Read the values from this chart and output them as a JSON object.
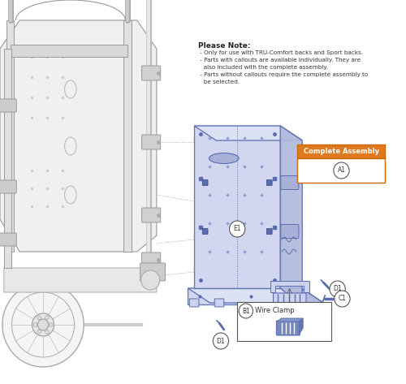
{
  "background_color": "#ffffff",
  "note_title": "Please Note:",
  "note_lines": [
    " - Only for use with TRU-Comfort backs and Sport backs.",
    " - Parts with callouts are available individually. They are",
    "   also included with the complete assembly.",
    " - Parts without callouts require the complete assembly to",
    "   be selected."
  ],
  "complete_assembly_label": "Complete Assembly",
  "complete_assembly_color": "#e07820",
  "wire_clamp_label": "Wire Clamp",
  "part_color": "#5a6db0",
  "part_fill": "#cdd3ee",
  "part_fill_dark": "#a8b0d8",
  "part_fill_side": "#b0b8dc",
  "frame_color": "#aaaaaa",
  "frame_fill": "#e8e8e8",
  "dashed_color": "#aaaaaa",
  "callout_ec": "#555555",
  "callout_fc": "#ffffff",
  "callout_text": "#333333"
}
